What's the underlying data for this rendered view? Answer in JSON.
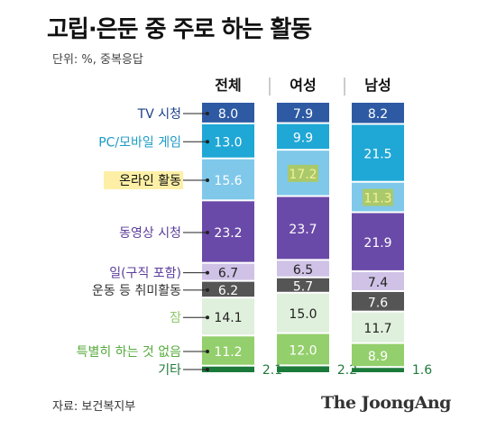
{
  "title": "고립·은둔 중 주로 하는 활동",
  "unit": "단위: %, 중복응답",
  "source": "자료: 보건복지부",
  "brand": "The JoongAng",
  "chart_data": {
    "type": "bar",
    "stacked": true,
    "groups": [
      "전체",
      "여성",
      "남성"
    ],
    "categories": [
      "TV 시청",
      "PC/모바일 게임",
      "온라인 활동",
      "동영상 시청",
      "일(구직 포함)",
      "운동 등 취미활동",
      "잠",
      "특별히 하는 것 없음",
      "기타"
    ],
    "series": [
      {
        "name": "전체",
        "values": [
          8.0,
          13.0,
          15.6,
          23.2,
          6.7,
          6.2,
          14.1,
          11.2,
          2.1
        ]
      },
      {
        "name": "여성",
        "values": [
          7.9,
          9.9,
          17.2,
          23.7,
          6.5,
          5.7,
          15.0,
          12.0,
          2.2
        ]
      },
      {
        "name": "남성",
        "values": [
          8.2,
          21.5,
          11.3,
          21.9,
          7.4,
          7.6,
          11.7,
          8.9,
          1.6
        ]
      }
    ],
    "colors": [
      "#2e5aa3",
      "#1fa7d6",
      "#7fc8ea",
      "#6a4aa8",
      "#cfc2e6",
      "#555555",
      "#dff0dc",
      "#93cf6c",
      "#1b7a3a"
    ],
    "label_colors": [
      "#1b3f8b",
      "#1f9bc8",
      "#111111",
      "#5b3d9a",
      "#5b3d9a",
      "#333333",
      "#8fc86a",
      "#55ab3c",
      "#1e7a3b"
    ],
    "highlight_category": "온라인 활동"
  }
}
